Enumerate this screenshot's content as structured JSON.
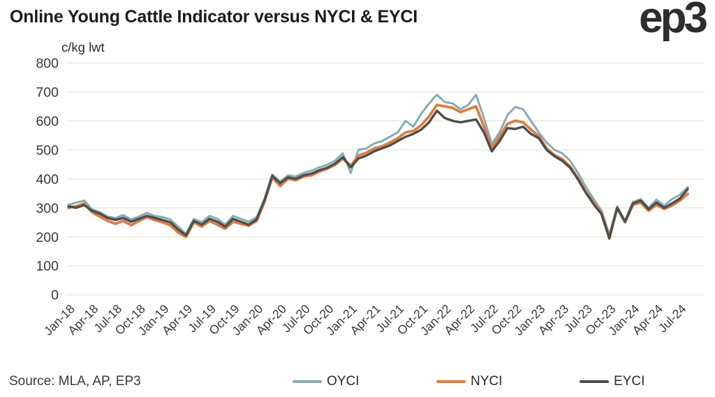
{
  "header": {
    "title": "Online Young Cattle Indicator versus NYCI & EYCI",
    "logo": "ep3"
  },
  "chart": {
    "unit_label": "c/kg lwt",
    "source": "Source: MLA, AP, EP3",
    "colors": {
      "oyci": "#85ADB3",
      "nyci": "#DD7C43",
      "eyci": "#4D4D4D",
      "gridline": "#EFECE2",
      "axis_text": "#383838",
      "title_text": "#1C1C1C"
    }
  },
  "chart_data": {
    "type": "line",
    "title": "Online Young Cattle Indicator versus NYCI & EYCI",
    "xlabel": "",
    "ylabel": "c/kg lwt",
    "ylim": [
      0,
      800
    ],
    "y_ticks": [
      0,
      100,
      200,
      300,
      400,
      500,
      600,
      700,
      800
    ],
    "grid": "horizontal",
    "legend_position": "bottom",
    "x": [
      "Jan-18",
      "Feb-18",
      "Mar-18",
      "Apr-18",
      "May-18",
      "Jun-18",
      "Jul-18",
      "Aug-18",
      "Sep-18",
      "Oct-18",
      "Nov-18",
      "Dec-18",
      "Jan-19",
      "Feb-19",
      "Mar-19",
      "Apr-19",
      "May-19",
      "Jun-19",
      "Jul-19",
      "Aug-19",
      "Sep-19",
      "Oct-19",
      "Nov-19",
      "Dec-19",
      "Jan-20",
      "Feb-20",
      "Mar-20",
      "Apr-20",
      "May-20",
      "Jun-20",
      "Jul-20",
      "Aug-20",
      "Sep-20",
      "Oct-20",
      "Nov-20",
      "Dec-20",
      "Jan-21",
      "Feb-21",
      "Mar-21",
      "Apr-21",
      "May-21",
      "Jun-21",
      "Jul-21",
      "Aug-21",
      "Sep-21",
      "Oct-21",
      "Nov-21",
      "Dec-21",
      "Jan-22",
      "Feb-22",
      "Mar-22",
      "Apr-22",
      "May-22",
      "Jun-22",
      "Jul-22",
      "Aug-22",
      "Sep-22",
      "Oct-22",
      "Nov-22",
      "Dec-22",
      "Jan-23",
      "Feb-23",
      "Mar-23",
      "Apr-23",
      "May-23",
      "Jun-23",
      "Jul-23",
      "Aug-23",
      "Sep-23",
      "Oct-23",
      "Nov-23",
      "Dec-23",
      "Jan-24",
      "Feb-24",
      "Mar-24",
      "Apr-24",
      "May-24",
      "Jun-24",
      "Jul-24",
      "Aug-24"
    ],
    "x_tick_labels": [
      "Jan-18",
      "Apr-18",
      "Jul-18",
      "Oct-18",
      "Jan-19",
      "Apr-19",
      "Jul-19",
      "Oct-19",
      "Jan-20",
      "Apr-20",
      "Jul-20",
      "Oct-20",
      "Jan-21",
      "Apr-21",
      "Jul-21",
      "Oct-21",
      "Jan-22",
      "Apr-22",
      "Jul-22",
      "Oct-22",
      "Jan-23",
      "Apr-23",
      "Jul-23",
      "Oct-23",
      "Jan-24",
      "Apr-24",
      "Jul-24"
    ],
    "x_tick_every_n_months": 3,
    "series": [
      {
        "name": "OYCI",
        "color": "#85ADB3",
        "values": [
          310,
          318,
          325,
          295,
          285,
          270,
          265,
          275,
          260,
          270,
          282,
          272,
          268,
          260,
          235,
          210,
          262,
          250,
          272,
          262,
          242,
          272,
          262,
          252,
          268,
          330,
          415,
          390,
          412,
          408,
          420,
          428,
          440,
          448,
          462,
          488,
          420,
          500,
          505,
          522,
          530,
          545,
          560,
          600,
          580,
          625,
          660,
          690,
          665,
          660,
          640,
          655,
          690,
          610,
          520,
          560,
          620,
          648,
          640,
          600,
          560,
          525,
          500,
          488,
          462,
          420,
          372,
          330,
          290,
          208,
          305,
          255,
          320,
          330,
          300,
          328,
          308,
          330,
          345,
          372
        ]
      },
      {
        "name": "NYCI",
        "color": "#DD7C43",
        "values": [
          300,
          305,
          315,
          285,
          270,
          255,
          245,
          255,
          240,
          255,
          268,
          258,
          250,
          240,
          215,
          200,
          250,
          235,
          255,
          242,
          228,
          252,
          245,
          238,
          255,
          320,
          405,
          375,
          400,
          395,
          408,
          412,
          425,
          435,
          448,
          470,
          445,
          480,
          490,
          505,
          512,
          525,
          540,
          560,
          565,
          585,
          615,
          655,
          650,
          645,
          630,
          640,
          650,
          580,
          505,
          545,
          590,
          600,
          595,
          570,
          548,
          505,
          482,
          468,
          442,
          402,
          355,
          318,
          282,
          200,
          298,
          250,
          310,
          318,
          290,
          310,
          296,
          308,
          325,
          348
        ]
      },
      {
        "name": "EYCI",
        "color": "#4D4D4D",
        "values": [
          305,
          300,
          310,
          290,
          280,
          265,
          258,
          265,
          252,
          262,
          272,
          265,
          258,
          250,
          225,
          205,
          255,
          242,
          262,
          252,
          235,
          262,
          252,
          242,
          260,
          325,
          410,
          385,
          405,
          400,
          412,
          418,
          430,
          438,
          452,
          475,
          440,
          470,
          480,
          495,
          505,
          515,
          530,
          545,
          555,
          570,
          595,
          635,
          610,
          600,
          595,
          600,
          605,
          560,
          495,
          530,
          575,
          572,
          580,
          555,
          540,
          500,
          478,
          462,
          438,
          398,
          352,
          312,
          278,
          194,
          300,
          252,
          315,
          325,
          295,
          318,
          300,
          315,
          332,
          365
        ]
      }
    ]
  },
  "legend": {
    "items": [
      {
        "label": "OYCI"
      },
      {
        "label": "NYCI"
      },
      {
        "label": "EYCI"
      }
    ]
  }
}
